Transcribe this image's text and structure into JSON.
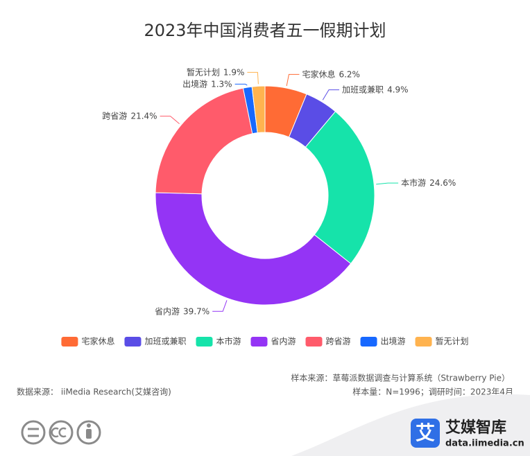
{
  "chart_data": {
    "type": "pie",
    "title": "2023年中国消费者五一假期计划",
    "categories": [
      "宅家休息",
      "加班或兼职",
      "本市游",
      "省内游",
      "跨省游",
      "出境游",
      "暂无计划"
    ],
    "values": [
      6.2,
      4.9,
      24.6,
      39.7,
      21.4,
      1.3,
      1.9
    ],
    "value_labels": [
      "6.2%",
      "4.9%",
      "24.6%",
      "39.7%",
      "21.4%",
      "1.3%",
      "1.9%"
    ],
    "colors": [
      "#ff6b35",
      "#5a4de6",
      "#16e3aa",
      "#9434f5",
      "#ff5b6b",
      "#1768ff",
      "#ffb34f"
    ],
    "donut": true,
    "legend": "bottom"
  },
  "footer": {
    "sample_source": "样本来源：草莓派数据调查与计算系统（Strawberry Pie）",
    "data_source": "数据来源： iiMedia Research(艾媒咨询)",
    "sample_size": "样本量：N=1996；调研时间：2023年4月"
  },
  "logo": {
    "icon": "艾",
    "name": "艾媒智库",
    "url": "data.iimedia.cn"
  }
}
